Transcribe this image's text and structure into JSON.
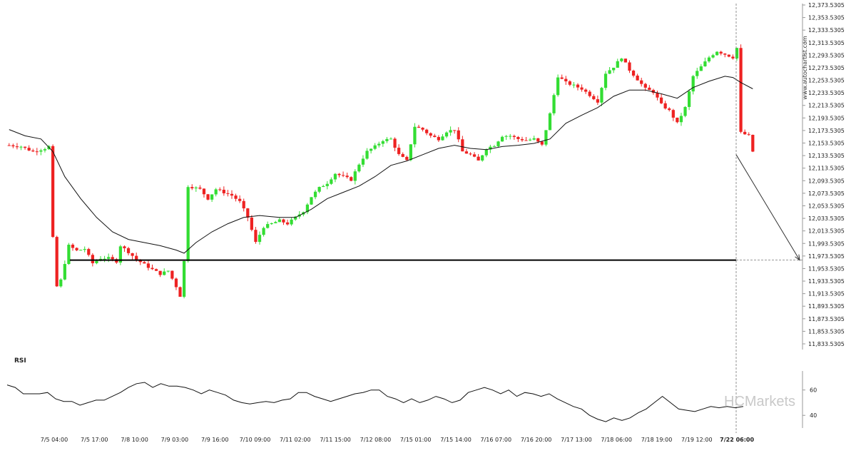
{
  "chart_data": {
    "type": "candlestick",
    "watermark": "www.autochartist.com",
    "brand": {
      "prefix": "HC",
      "name": "Markets"
    },
    "colors": {
      "up": "#33dd33",
      "down": "#ee2222",
      "ma": "#111111",
      "level": "#000000",
      "rsi": "#111111"
    },
    "y_axis": {
      "ticks": [
        "12,373.5305",
        "12,353.5305",
        "12,333.5305",
        "12,313.5305",
        "12,293.5305",
        "12,273.5305",
        "12,253.5305",
        "12,233.5305",
        "12,213.5305",
        "12,193.5305",
        "12,173.5305",
        "12,153.5305",
        "12,133.5305",
        "12,113.5305",
        "12,093.5305",
        "12,073.5305",
        "12,053.5305",
        "12,033.5305",
        "12,013.5305",
        "11,993.5305",
        "11,973.5305",
        "11,953.5305",
        "11,933.5305",
        "11,913.5305",
        "11,893.5305",
        "11,873.5305",
        "11,853.5305",
        "11,833.5305"
      ],
      "ylim": [
        11833.5305,
        12373.5305
      ]
    },
    "x_axis": {
      "ticks": [
        "7/5 04:00",
        "7/5 17:00",
        "7/8 10:00",
        "7/9 03:00",
        "7/9 16:00",
        "7/10 09:00",
        "7/11 02:00",
        "7/11 15:00",
        "7/12 08:00",
        "7/15 01:00",
        "7/15 14:00",
        "7/16 07:00",
        "7/16 20:00",
        "7/17 13:00",
        "7/18 06:00",
        "7/18 19:00",
        "7/19 12:00",
        "7/22 06:00"
      ],
      "current": "7/22 06:00",
      "bar_count": 200
    },
    "support_level": 11967,
    "projection": {
      "from_price": 12135,
      "to_price": 11967
    },
    "price_path": [
      [
        0,
        12150
      ],
      [
        3,
        12148
      ],
      [
        6,
        12140
      ],
      [
        9,
        12145
      ],
      [
        10,
        12148
      ],
      [
        11,
        12002
      ],
      [
        12,
        11925
      ],
      [
        13,
        11935
      ],
      [
        15,
        11990
      ],
      [
        17,
        11982
      ],
      [
        19,
        11985
      ],
      [
        21,
        11962
      ],
      [
        23,
        11970
      ],
      [
        25,
        11970
      ],
      [
        27,
        11965
      ],
      [
        28,
        11990
      ],
      [
        30,
        11980
      ],
      [
        32,
        11968
      ],
      [
        34,
        11960
      ],
      [
        36,
        11952
      ],
      [
        38,
        11945
      ],
      [
        40,
        11950
      ],
      [
        42,
        11925
      ],
      [
        43,
        11910
      ],
      [
        44,
        11965
      ],
      [
        45,
        12085
      ],
      [
        48,
        12080
      ],
      [
        50,
        12065
      ],
      [
        52,
        12080
      ],
      [
        54,
        12075
      ],
      [
        56,
        12070
      ],
      [
        58,
        12060
      ],
      [
        60,
        12035
      ],
      [
        62,
        11995
      ],
      [
        64,
        12020
      ],
      [
        66,
        12025
      ],
      [
        68,
        12030
      ],
      [
        70,
        12025
      ],
      [
        72,
        12035
      ],
      [
        74,
        12045
      ],
      [
        76,
        12068
      ],
      [
        78,
        12082
      ],
      [
        80,
        12090
      ],
      [
        82,
        12105
      ],
      [
        84,
        12100
      ],
      [
        86,
        12095
      ],
      [
        88,
        12120
      ],
      [
        90,
        12140
      ],
      [
        92,
        12148
      ],
      [
        94,
        12158
      ],
      [
        96,
        12160
      ],
      [
        98,
        12135
      ],
      [
        100,
        12125
      ],
      [
        102,
        12180
      ],
      [
        104,
        12175
      ],
      [
        106,
        12165
      ],
      [
        108,
        12160
      ],
      [
        110,
        12172
      ],
      [
        112,
        12175
      ],
      [
        114,
        12140
      ],
      [
        116,
        12135
      ],
      [
        118,
        12125
      ],
      [
        120,
        12145
      ],
      [
        122,
        12150
      ],
      [
        124,
        12165
      ],
      [
        126,
        12165
      ],
      [
        128,
        12160
      ],
      [
        130,
        12158
      ],
      [
        132,
        12160
      ],
      [
        134,
        12150
      ],
      [
        136,
        12200
      ],
      [
        138,
        12260
      ],
      [
        140,
        12250
      ],
      [
        142,
        12245
      ],
      [
        144,
        12240
      ],
      [
        146,
        12230
      ],
      [
        148,
        12220
      ],
      [
        150,
        12265
      ],
      [
        152,
        12275
      ],
      [
        154,
        12290
      ],
      [
        156,
        12270
      ],
      [
        158,
        12255
      ],
      [
        160,
        12240
      ],
      [
        162,
        12235
      ],
      [
        164,
        12215
      ],
      [
        166,
        12205
      ],
      [
        168,
        12185
      ],
      [
        170,
        12210
      ],
      [
        172,
        12260
      ],
      [
        174,
        12275
      ],
      [
        176,
        12290
      ],
      [
        178,
        12300
      ],
      [
        180,
        12295
      ],
      [
        182,
        12290
      ],
      [
        183,
        12305
      ],
      [
        184,
        12170
      ],
      [
        186,
        12165
      ],
      [
        187,
        12140
      ]
    ],
    "ma_path": [
      [
        0,
        12175
      ],
      [
        4,
        12165
      ],
      [
        8,
        12160
      ],
      [
        11,
        12140
      ],
      [
        14,
        12100
      ],
      [
        18,
        12065
      ],
      [
        22,
        12035
      ],
      [
        26,
        12012
      ],
      [
        30,
        12000
      ],
      [
        34,
        11995
      ],
      [
        38,
        11990
      ],
      [
        42,
        11983
      ],
      [
        44,
        11978
      ],
      [
        47,
        11995
      ],
      [
        51,
        12012
      ],
      [
        55,
        12025
      ],
      [
        59,
        12035
      ],
      [
        63,
        12038
      ],
      [
        68,
        12035
      ],
      [
        72,
        12035
      ],
      [
        76,
        12048
      ],
      [
        80,
        12065
      ],
      [
        84,
        12075
      ],
      [
        88,
        12085
      ],
      [
        92,
        12100
      ],
      [
        96,
        12118
      ],
      [
        100,
        12125
      ],
      [
        104,
        12135
      ],
      [
        108,
        12145
      ],
      [
        112,
        12150
      ],
      [
        116,
        12145
      ],
      [
        120,
        12143
      ],
      [
        124,
        12148
      ],
      [
        128,
        12150
      ],
      [
        132,
        12153
      ],
      [
        136,
        12160
      ],
      [
        140,
        12185
      ],
      [
        144,
        12198
      ],
      [
        148,
        12210
      ],
      [
        152,
        12228
      ],
      [
        156,
        12238
      ],
      [
        160,
        12238
      ],
      [
        164,
        12232
      ],
      [
        168,
        12225
      ],
      [
        172,
        12242
      ],
      [
        176,
        12252
      ],
      [
        180,
        12260
      ],
      [
        182,
        12258
      ],
      [
        184,
        12250
      ],
      [
        187,
        12240
      ]
    ],
    "rsi": {
      "label": "RSI",
      "ticks": [
        "60",
        "40"
      ],
      "levels": [
        60,
        40
      ],
      "range": [
        30,
        75
      ],
      "values": [
        64,
        62,
        57,
        57,
        57,
        58,
        53,
        51,
        51,
        48,
        50,
        52,
        52,
        55,
        58,
        62,
        65,
        66,
        62,
        65,
        63,
        63,
        62,
        60,
        57,
        60,
        58,
        56,
        52,
        50,
        49,
        50,
        51,
        50,
        52,
        53,
        58,
        58,
        55,
        53,
        51,
        53,
        55,
        57,
        58,
        60,
        60,
        55,
        53,
        50,
        53,
        50,
        52,
        55,
        53,
        50,
        52,
        58,
        60,
        62,
        60,
        57,
        60,
        55,
        58,
        57,
        55,
        57,
        53,
        50,
        47,
        45,
        40,
        37,
        35,
        38,
        36,
        38,
        42,
        45,
        50,
        55,
        50,
        45,
        44,
        43,
        45,
        47,
        46,
        47,
        46,
        47
      ]
    }
  }
}
